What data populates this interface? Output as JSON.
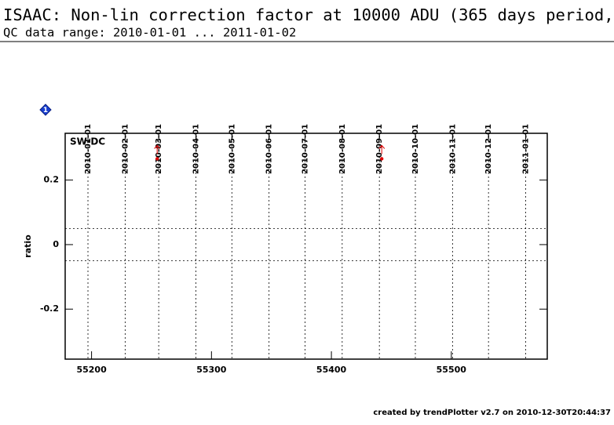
{
  "chart_data": {
    "type": "scatter",
    "title": "ISAAC: Non-lin correction factor at 10000 ADU (365 days period,",
    "subtitle": "QC data range: 2010-01-01 ... 2011-01-02",
    "ylabel": "ratio",
    "annotation": "SW-DC",
    "badge": "1",
    "footer": "created by trendPlotter v2.7 on 2010-12-30T20:44:37",
    "series": [
      {
        "color": "#e00000",
        "x": [
          55254.7,
          55442
        ],
        "values": [
          0.266,
          0.266
        ]
      }
    ],
    "xlim": [
      55178,
      55580
    ],
    "xticks": [
      55200,
      55300,
      55400,
      55500
    ],
    "ylim": [
      -0.355,
      0.345
    ],
    "yticks": [
      -0.2,
      0,
      0.2
    ],
    "thresholds": [
      -0.05,
      0.05
    ],
    "date_markers": [
      {
        "value": 55197,
        "label": "2010-01-01"
      },
      {
        "value": 55228,
        "label": "2010-02-01"
      },
      {
        "value": 55256,
        "label": "2010-03-01"
      },
      {
        "value": 55287,
        "label": "2010-04-01"
      },
      {
        "value": 55317,
        "label": "2010-05-01"
      },
      {
        "value": 55348,
        "label": "2010-06-01"
      },
      {
        "value": 55378,
        "label": "2010-07-01"
      },
      {
        "value": 55409,
        "label": "2010-08-01"
      },
      {
        "value": 55440,
        "label": "2010-09-01"
      },
      {
        "value": 55470,
        "label": "2010-10-01"
      },
      {
        "value": 55501,
        "label": "2010-11-01"
      },
      {
        "value": 55531,
        "label": "2010-12-01"
      },
      {
        "value": 55562,
        "label": "2011-01-01"
      }
    ]
  }
}
